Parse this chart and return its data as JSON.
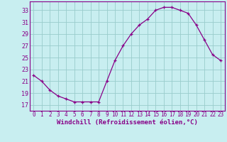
{
  "x": [
    0,
    1,
    2,
    3,
    4,
    5,
    6,
    7,
    8,
    9,
    10,
    11,
    12,
    13,
    14,
    15,
    16,
    17,
    18,
    19,
    20,
    21,
    22,
    23
  ],
  "y": [
    22.0,
    21.0,
    19.5,
    18.5,
    18.0,
    17.5,
    17.5,
    17.5,
    17.5,
    21.0,
    24.5,
    27.0,
    29.0,
    30.5,
    31.5,
    33.0,
    33.5,
    33.5,
    33.0,
    32.5,
    30.5,
    28.0,
    25.5,
    24.5
  ],
  "line_color": "#880088",
  "marker": "+",
  "bg_color": "#c8eef0",
  "grid_color": "#99cccc",
  "axis_color": "#880088",
  "xlabel": "Windchill (Refroidissement éolien,°C)",
  "xlabel_color": "#880088",
  "tick_color": "#880088",
  "ylabel_ticks": [
    17,
    19,
    21,
    23,
    25,
    27,
    29,
    31,
    33
  ],
  "ylim": [
    16.0,
    34.5
  ],
  "xlim": [
    -0.5,
    23.5
  ],
  "xticks": [
    0,
    1,
    2,
    3,
    4,
    5,
    6,
    7,
    8,
    9,
    10,
    11,
    12,
    13,
    14,
    15,
    16,
    17,
    18,
    19,
    20,
    21,
    22,
    23
  ],
  "tick_fontsize": 5.5,
  "xlabel_fontsize": 6.5,
  "ylabel_fontsize": 6.0,
  "linewidth": 0.9,
  "markersize": 3.5
}
